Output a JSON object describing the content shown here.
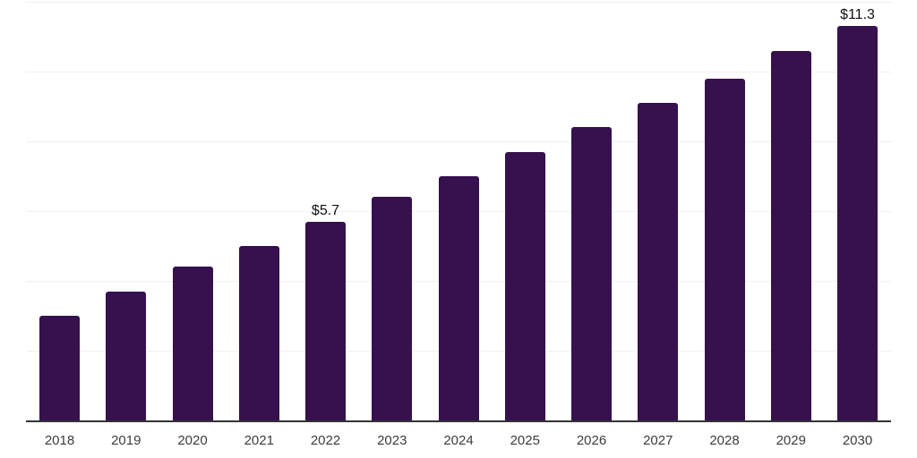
{
  "chart_data": {
    "type": "bar",
    "title": "",
    "xlabel": "",
    "ylabel": "",
    "categories": [
      "2018",
      "2019",
      "2020",
      "2021",
      "2022",
      "2023",
      "2024",
      "2025",
      "2026",
      "2027",
      "2028",
      "2029",
      "2030"
    ],
    "values": [
      3.0,
      3.7,
      4.4,
      5.0,
      5.7,
      6.4,
      7.0,
      7.7,
      8.4,
      9.1,
      9.8,
      10.6,
      11.3
    ],
    "data_labels": [
      {
        "category": "2022",
        "text": "$5.7"
      },
      {
        "category": "2030",
        "text": "$11.3"
      }
    ],
    "ylim": [
      0,
      12
    ],
    "gridline_interval": 2,
    "grid_visible": true,
    "legend": "none",
    "colors": {
      "bar": "#36114D",
      "gridline": "#F0F0F0",
      "axis_line": "#333333",
      "tick_label": "#3C3C3C",
      "value_label": "#111111",
      "background": "#FFFFFF"
    }
  }
}
